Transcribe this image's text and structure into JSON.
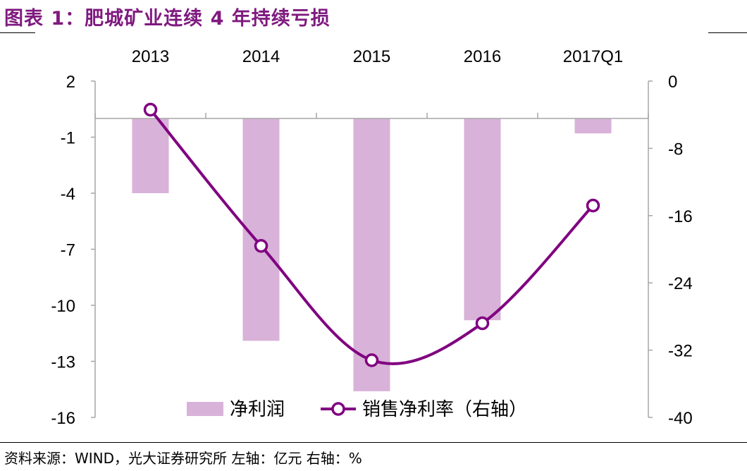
{
  "title": "图表 1：肥城矿业连续 4 年持续亏损",
  "footer": "资料来源：WIND，光大证券研究所   左轴：亿元   右轴：%",
  "colors": {
    "title": "#7F1A7F",
    "bar": "#D8B2D8",
    "line": "#800080",
    "axis": "#A6A6A6"
  },
  "chart_data": {
    "type": "bar+line",
    "categories": [
      "2013",
      "2014",
      "2015",
      "2016",
      "2017Q1"
    ],
    "x_axis_position": "top",
    "series": [
      {
        "name": "净利润",
        "type": "bar",
        "axis": "left",
        "values": [
          -4.0,
          -11.9,
          -14.6,
          -10.8,
          -0.8
        ]
      },
      {
        "name": "销售净利率（右轴）",
        "type": "line",
        "axis": "right",
        "smooth": true,
        "marker": "hollow-circle",
        "values": [
          -3.4,
          -19.6,
          -33.2,
          -28.8,
          -14.8
        ]
      }
    ],
    "left_axis": {
      "range": [
        -16,
        2
      ],
      "ticks": [
        "2",
        "-1",
        "-4",
        "-7",
        "-10",
        "-13",
        "-16"
      ]
    },
    "right_axis": {
      "range": [
        -40,
        0
      ],
      "ticks": [
        "0",
        "-8",
        "-16",
        "-24",
        "-32",
        "-40"
      ]
    },
    "grid": false,
    "legend": "bottom"
  }
}
